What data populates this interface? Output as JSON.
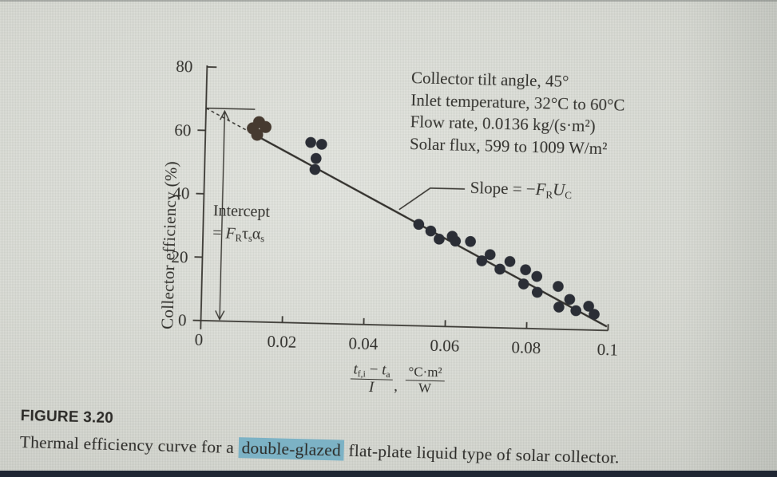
{
  "page": {
    "background_color": "#d4d6cf",
    "bottom_bar_color": "#1f2633"
  },
  "caption": {
    "title": "FIGURE 3.20",
    "before": "Thermal efficiency curve for a ",
    "highlight": "double-glazed",
    "after": " flat-plate liquid type of solar collector.",
    "highlight_color": "#7cb2c5"
  },
  "chart_data": {
    "type": "scatter",
    "ylabel": "Collector efficiency (%)",
    "xlabel": {
      "numerator_t1": "t",
      "numerator_t1_sub": "f,i",
      "minus": " − ",
      "numerator_t2": "t",
      "numerator_t2_sub": "a",
      "denominator": "I",
      "comma": ",",
      "unit_numerator": "°C·m²",
      "unit_denominator": "W"
    },
    "xlim": [
      0,
      0.1
    ],
    "ylim": [
      0,
      80
    ],
    "xtick_labels": [
      "0",
      "0.02",
      "0.04",
      "0.06",
      "0.08",
      "0.1"
    ],
    "ytick_labels": [
      "0",
      "20",
      "40",
      "60",
      "80"
    ],
    "grid": false,
    "conditions": [
      "Collector tilt angle, 45°",
      "Inlet temperature, 32°C to 60°C",
      "Flow rate, 0.0136 kg/(s·m²)",
      "Solar flux, 599 to 1009 W/m²"
    ],
    "slope_label": {
      "pre": "Slope = −",
      "f": "F",
      "f_sub": "R",
      "u": "U",
      "u_sub": "C"
    },
    "intercept_label": {
      "line1": "Intercept",
      "eq": "= ",
      "f": "F",
      "f_sub": "R",
      "tau": "τ",
      "tau_sub": "s",
      "alpha": "α",
      "alpha_sub": "s"
    },
    "trend_line": {
      "intercept_pct": 67,
      "slope_pct_per_unit": -660,
      "x_start": 0,
      "x_solid_from": 0.013,
      "x_end": 0.0995,
      "color": "#34322e"
    },
    "intercept_marker": {
      "y_pct": 67,
      "x_from": 0,
      "x_to": 0.0085
    },
    "intercept_arrow": {
      "x": 0.0046,
      "y_from": 0.5,
      "y_to": 66.2
    },
    "slope_callout": {
      "attach": [
        0.048,
        36.5
      ],
      "elbow": [
        0.0555,
        43.5
      ],
      "end_x": 0.064
    },
    "series": [
      {
        "name": "cluster-near-intercept",
        "color": "#463a30",
        "radius": 7.5,
        "points": [
          [
            0.0116,
            61.0
          ],
          [
            0.0131,
            63.0
          ],
          [
            0.0147,
            61.5
          ],
          [
            0.0127,
            59.0
          ]
        ]
      },
      {
        "name": "scatter-points",
        "color": "#2b2e36",
        "radius": 6.8,
        "points": [
          [
            0.0259,
            57.0
          ],
          [
            0.0286,
            56.5
          ],
          [
            0.0273,
            52.0
          ],
          [
            0.0271,
            48.5
          ],
          [
            0.0529,
            32.0
          ],
          [
            0.0559,
            30.0
          ],
          [
            0.058,
            27.5
          ],
          [
            0.0612,
            28.5
          ],
          [
            0.062,
            27.0
          ],
          [
            0.0657,
            27.0
          ],
          [
            0.0686,
            21.0
          ],
          [
            0.0706,
            23.0
          ],
          [
            0.0731,
            18.5
          ],
          [
            0.0755,
            21.0
          ],
          [
            0.079,
            14.0
          ],
          [
            0.0794,
            18.5
          ],
          [
            0.0822,
            16.5
          ],
          [
            0.0824,
            11.5
          ],
          [
            0.0875,
            13.5
          ],
          [
            0.0878,
            7.0
          ],
          [
            0.0904,
            9.5
          ],
          [
            0.092,
            6.0
          ],
          [
            0.0951,
            7.5
          ],
          [
            0.0965,
            5.0
          ]
        ]
      }
    ]
  }
}
